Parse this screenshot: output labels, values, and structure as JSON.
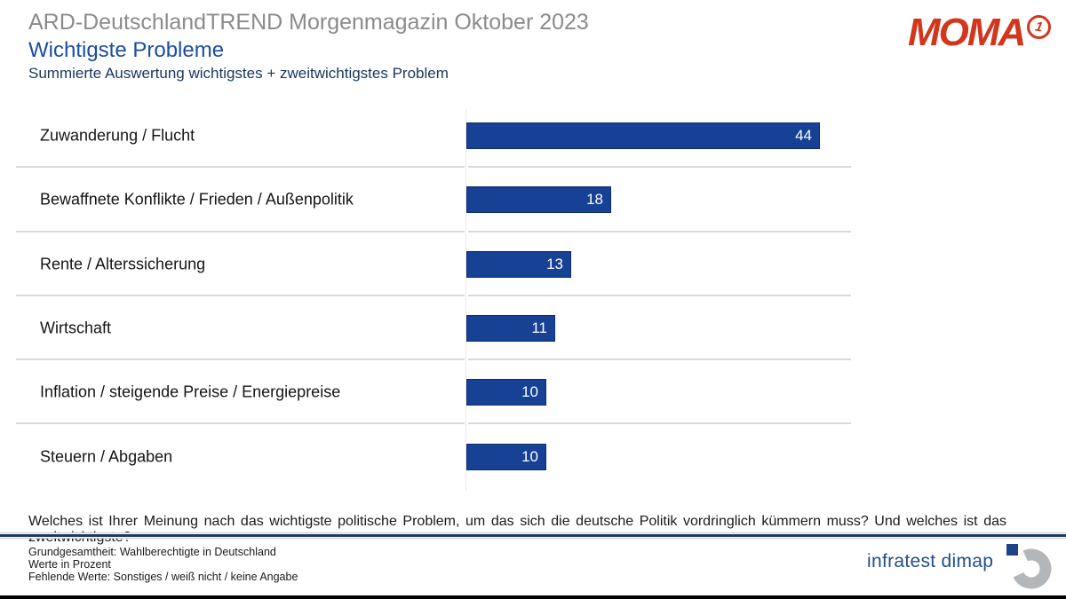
{
  "header": {
    "supertitle": "ARD-DeutschlandTREND Morgenmagazin Oktober 2023",
    "title": "Wichtigste Probleme",
    "subtitle": "Summierte Auswertung wichtigstes + zweitwichtigstes Problem"
  },
  "moma": {
    "text": "MOMA",
    "one": "1"
  },
  "chart_data": {
    "type": "bar",
    "orientation": "horizontal",
    "title": "Wichtigste Probleme",
    "subtitle": "Summierte Auswertung wichtigstes + zweitwichtigstes Problem",
    "categories": [
      "Zuwanderung / Flucht",
      "Bewaffnete Konflikte / Frieden / Außenpolitik",
      "Rente / Alterssicherung",
      "Wirtschaft",
      "Inflation / steigende Preise / Energiepreise",
      "Steuern / Abgaben"
    ],
    "values": [
      44,
      18,
      13,
      11,
      10,
      10
    ],
    "unit": "percent",
    "xlim": [
      0,
      48
    ],
    "grid": false,
    "legend": "none",
    "value_labels": "inside-right",
    "bar_color": "#164194",
    "value_label_color": "#ffffff"
  },
  "question": "Welches ist Ihrer Meinung nach das wichtigste politische Problem, um das sich die deutsche Politik vordringlich kümmern muss? Und welches ist das zweitwichtigste?",
  "footer": {
    "lines": [
      "Grundgesamtheit: Wahlberechtigte in Deutschland",
      "Werte in Prozent",
      "Fehlende Werte: Sonstiges / weiß nicht / keine Angabe"
    ],
    "brand": "infratest dimap"
  },
  "colors": {
    "bar_blue": "#164194",
    "title_blue": "#1c4da1",
    "subtitle_navy": "#17365d",
    "supertitle_gray": "#8b8b8e",
    "moma_red": "#d2361d",
    "divider_navy": "#1f3864",
    "separator_gray": "#dadada"
  }
}
